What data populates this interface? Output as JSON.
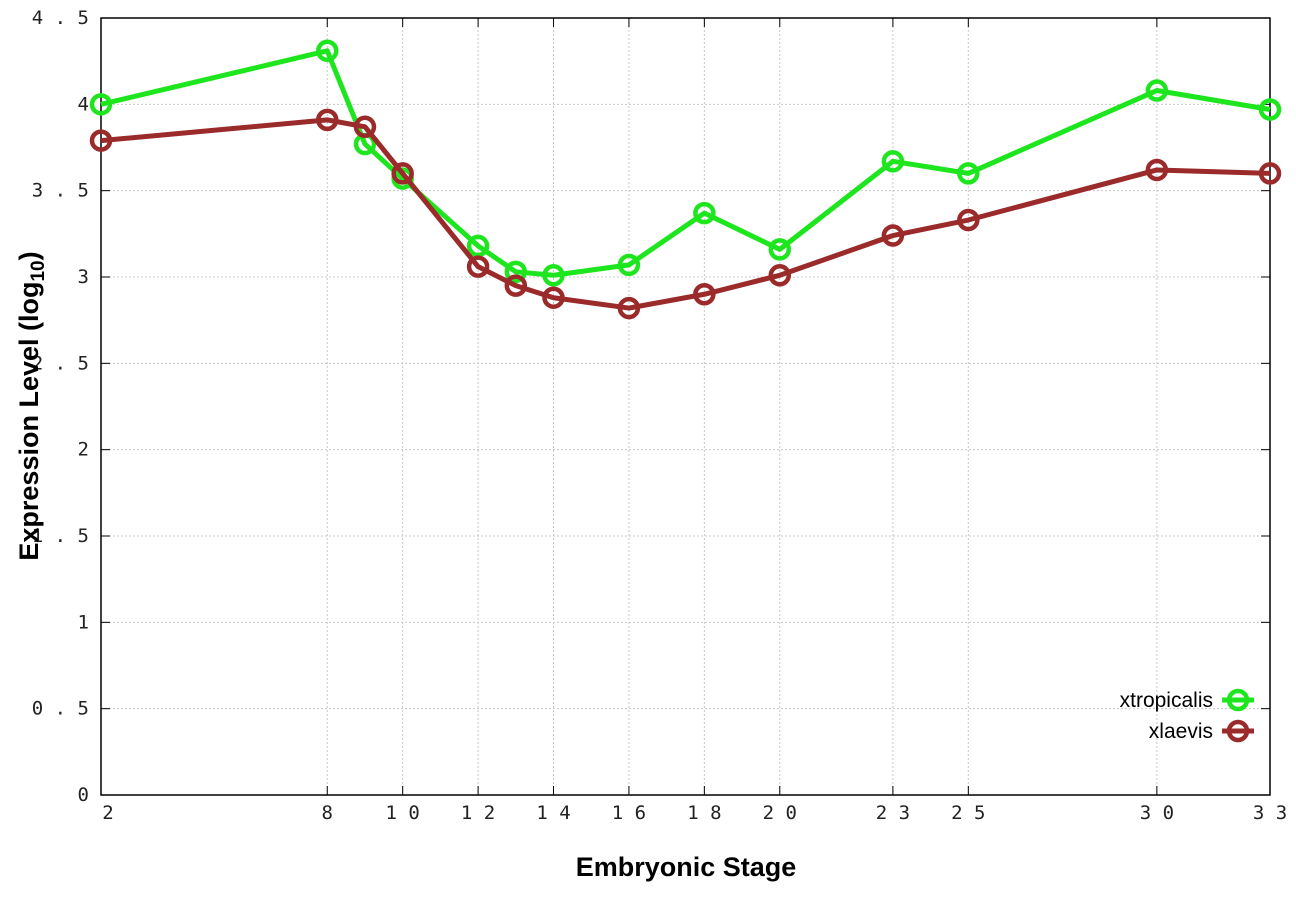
{
  "chart_data": {
    "type": "line",
    "title": "",
    "xlabel": "Embryonic Stage",
    "ylabel": "Expression Level (log10)",
    "ylabel_main": "Expression Level (log",
    "ylabel_sub": "10",
    "ylabel_close": ")",
    "xlim": [
      2,
      33
    ],
    "ylim": [
      0,
      4.5
    ],
    "x_ticks": [
      2,
      8,
      10,
      12,
      14,
      16,
      18,
      20,
      23,
      25,
      30,
      33
    ],
    "y_ticks": [
      "0",
      "0.5",
      "1",
      "1.5",
      "2",
      "2.5",
      "3",
      "3.5",
      "4",
      "4.5"
    ],
    "grid": true,
    "legend_position": "bottom-right",
    "x": [
      2,
      8,
      9,
      10,
      12,
      13,
      14,
      16,
      18,
      20,
      23,
      25,
      30,
      33
    ],
    "series": [
      {
        "name": "xtropicalis",
        "color": "#1ee61e",
        "values": [
          4.0,
          4.31,
          3.77,
          3.57,
          3.18,
          3.03,
          3.01,
          3.07,
          3.37,
          3.16,
          3.67,
          3.6,
          4.08,
          3.97
        ]
      },
      {
        "name": "xlaevis",
        "color": "#9b2a2a",
        "values": [
          3.79,
          3.91,
          3.87,
          3.6,
          3.06,
          2.95,
          2.88,
          2.82,
          2.9,
          3.01,
          3.24,
          3.33,
          3.62,
          3.6
        ]
      }
    ]
  }
}
